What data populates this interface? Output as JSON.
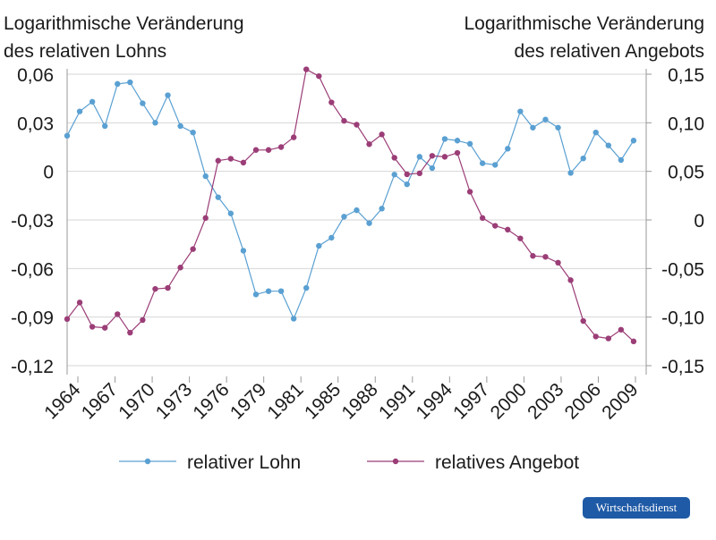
{
  "brand": {
    "label": "Wirtschaftsdienst",
    "color": "#1f5aa6"
  },
  "chart_data": {
    "type": "line",
    "left_axis_title": [
      "Logarithmische Veränderung",
      "des relativen Lohns"
    ],
    "right_axis_title": [
      "Logarithmische Veränderung",
      "des relativen Angebots"
    ],
    "left_ylim": [
      -0.12,
      0.06
    ],
    "right_ylim": [
      -0.15,
      0.15
    ],
    "left_ticks": [
      0.06,
      0.03,
      0,
      -0.03,
      -0.06,
      -0.09,
      -0.12
    ],
    "left_tick_labels": [
      "0,06",
      "0,03",
      "0",
      "-0,03",
      "-0,06",
      "-0,09",
      "-0,12"
    ],
    "right_ticks": [
      0.15,
      0.1,
      0.05,
      0,
      -0.05,
      -0.1,
      -0.15
    ],
    "right_tick_labels": [
      "0,15",
      "0,10",
      "0,05",
      "0",
      "-0,05",
      "-0,10",
      "-0,15"
    ],
    "xlim": [
      1963,
      2009
    ],
    "x_tick_labels": [
      "1964",
      "1967",
      "1970",
      "1973",
      "1976",
      "1979",
      "1981",
      "1985",
      "1988",
      "1991",
      "1994",
      "1997",
      "2000",
      "2003",
      "2006",
      "2009"
    ],
    "x": [
      1963,
      1964,
      1965,
      1966,
      1967,
      1968,
      1969,
      1970,
      1971,
      1972,
      1973,
      1974,
      1975,
      1976,
      1977,
      1978,
      1979,
      1980,
      1981,
      1982,
      1983,
      1984,
      1985,
      1986,
      1987,
      1988,
      1989,
      1990,
      1991,
      1992,
      1993,
      1994,
      1995,
      1996,
      1997,
      1998,
      1999,
      2000,
      2001,
      2002,
      2003,
      2004,
      2005,
      2006,
      2007,
      2008
    ],
    "grid": true,
    "legend_position": "bottom",
    "series": [
      {
        "name": "relativer Lohn",
        "axis": "left",
        "color": "#5aa0d2",
        "values": [
          0.022,
          0.037,
          0.043,
          0.028,
          0.054,
          0.055,
          0.042,
          0.03,
          0.047,
          0.028,
          0.024,
          -0.003,
          -0.016,
          -0.026,
          -0.049,
          -0.076,
          -0.074,
          -0.074,
          -0.091,
          -0.072,
          -0.046,
          -0.041,
          -0.028,
          -0.024,
          -0.032,
          -0.023,
          -0.002,
          -0.008,
          0.009,
          0.002,
          0.02,
          0.019,
          0.017,
          0.005,
          0.004,
          0.014,
          0.037,
          0.027,
          0.032,
          0.027,
          -0.001,
          0.008,
          0.024,
          0.016,
          0.007,
          0.019
        ]
      },
      {
        "name": "relatives Angebot",
        "axis": "right",
        "color": "#9b3d77",
        "values": [
          -0.102,
          -0.085,
          -0.11,
          -0.111,
          -0.097,
          -0.116,
          -0.103,
          -0.071,
          -0.07,
          -0.049,
          -0.03,
          0.002,
          0.061,
          0.063,
          0.059,
          0.072,
          0.072,
          0.075,
          0.085,
          0.155,
          0.148,
          0.121,
          0.102,
          0.098,
          0.078,
          0.088,
          0.064,
          0.047,
          0.048,
          0.066,
          0.065,
          0.069,
          0.029,
          0.002,
          -0.006,
          -0.01,
          -0.019,
          -0.037,
          -0.038,
          -0.044,
          -0.062,
          -0.104,
          -0.12,
          -0.122,
          -0.113,
          -0.125
        ]
      }
    ]
  }
}
